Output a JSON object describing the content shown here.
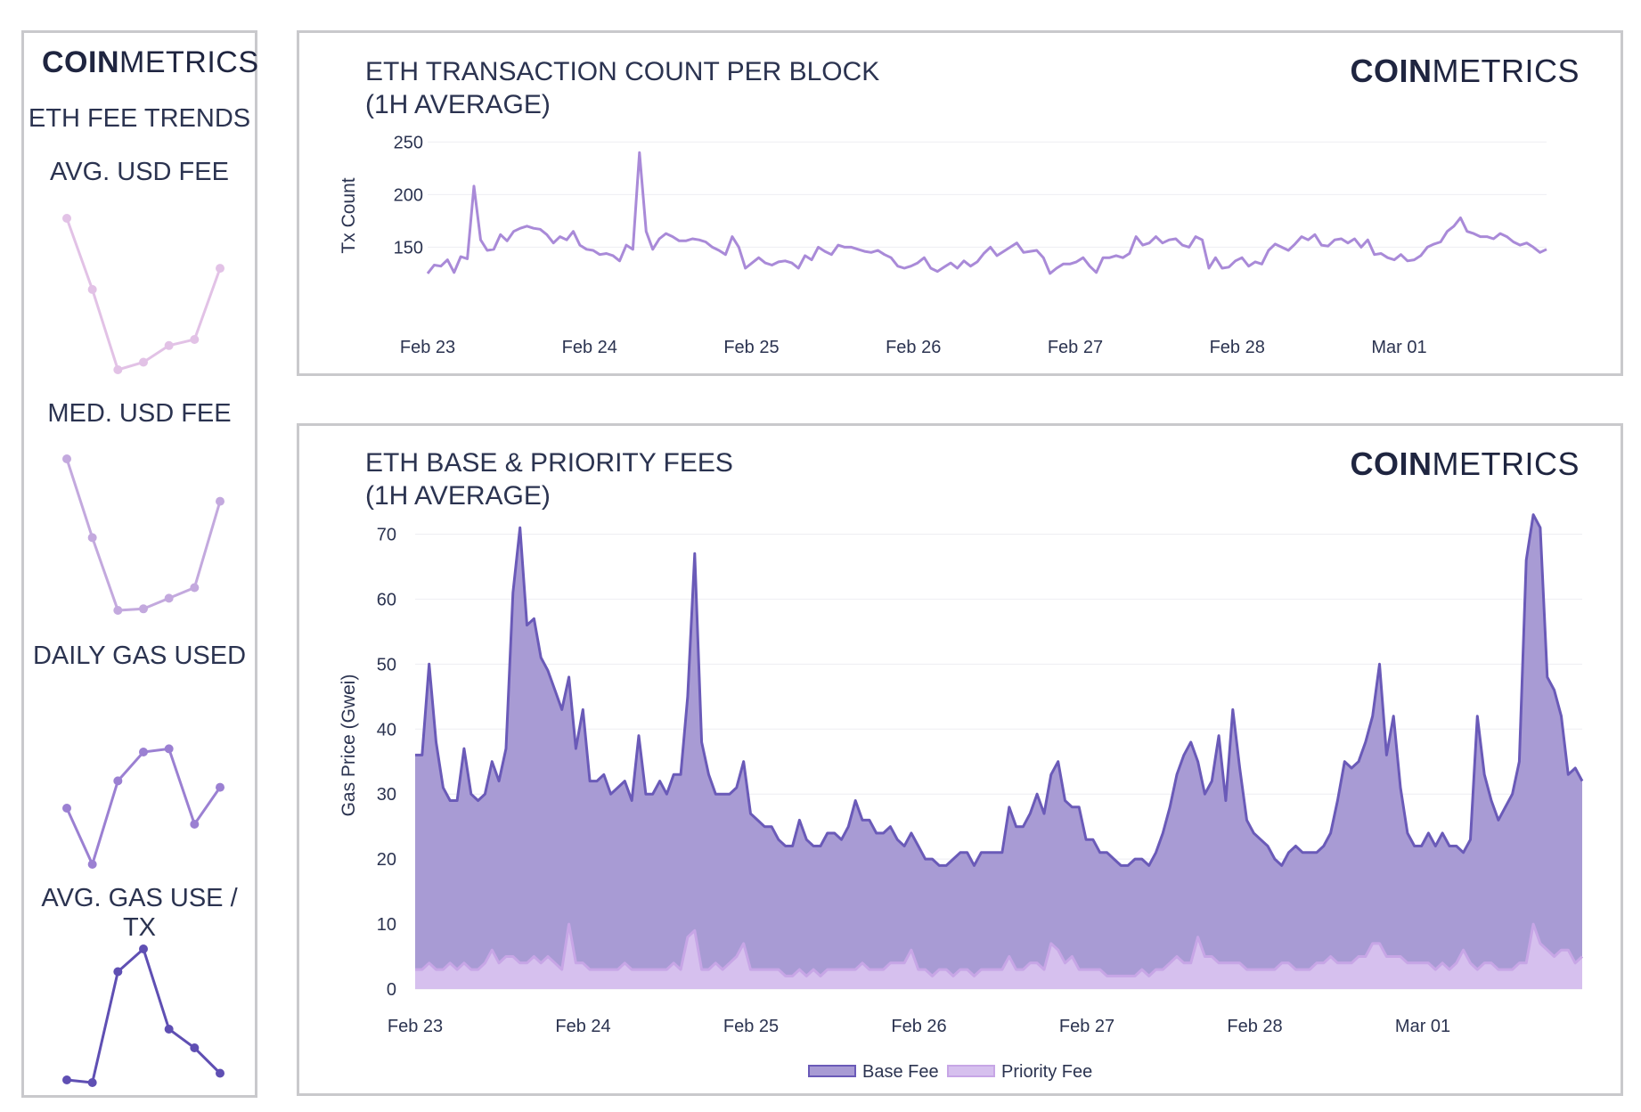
{
  "brand": {
    "bold": "COIN",
    "light": "METRICS"
  },
  "sidebar": {
    "title": "ETH FEE TRENDS",
    "sparklines": [
      {
        "label": "AVG. USD FEE",
        "color": "#e2c2e6",
        "values": [
          1.0,
          0.53,
          0.0,
          0.05,
          0.16,
          0.2,
          0.67
        ]
      },
      {
        "label": "MED. USD FEE",
        "color": "#c3a9de",
        "values": [
          1.0,
          0.48,
          0.0,
          0.01,
          0.08,
          0.15,
          0.72
        ]
      },
      {
        "label": "DAILY GAS USED",
        "color": "#9b80d2",
        "values": [
          0.35,
          0.0,
          0.52,
          0.7,
          0.72,
          0.25,
          0.48
        ]
      },
      {
        "label": "AVG. GAS USE / TX",
        "color": "#5f4fb3",
        "values": [
          0.02,
          0.0,
          0.83,
          1.0,
          0.4,
          0.26,
          0.07
        ]
      }
    ]
  },
  "chart_data": [
    {
      "type": "line",
      "title": "ETH TRANSACTION COUNT PER BLOCK\n(1H AVERAGE)",
      "ylabel": "Tx Count",
      "xlabel": "",
      "ylim": [
        108,
        252
      ],
      "yticks": [
        150,
        200,
        250
      ],
      "xticks": [
        "Feb 23",
        "Feb 24",
        "Feb 25",
        "Feb 26",
        "Feb 27",
        "Feb 28",
        "Mar 01"
      ],
      "grid": true,
      "series": [
        {
          "color": "#a98ad8",
          "values": [
            125,
            133,
            132,
            138,
            126,
            141,
            139,
            208,
            157,
            147,
            148,
            162,
            156,
            165,
            168,
            170,
            168,
            167,
            162,
            154,
            160,
            157,
            165,
            152,
            148,
            147,
            143,
            144,
            142,
            137,
            152,
            148,
            240,
            165,
            148,
            158,
            163,
            160,
            156,
            156,
            158,
            157,
            155,
            150,
            147,
            143,
            160,
            150,
            130,
            135,
            140,
            135,
            133,
            136,
            137,
            135,
            130,
            142,
            138,
            150,
            146,
            143,
            152,
            150,
            150,
            148,
            146,
            145,
            147,
            143,
            140,
            132,
            130,
            132,
            135,
            140,
            130,
            127,
            131,
            135,
            130,
            137,
            132,
            136,
            144,
            150,
            142,
            146,
            150,
            154,
            145,
            146,
            147,
            140,
            125,
            130,
            134,
            134,
            136,
            140,
            132,
            126,
            140,
            140,
            142,
            140,
            144,
            160,
            152,
            154,
            160,
            154,
            157,
            158,
            152,
            150,
            160,
            157,
            130,
            140,
            130,
            131,
            137,
            140,
            132,
            136,
            134,
            147,
            153,
            150,
            147,
            153,
            160,
            157,
            162,
            152,
            151,
            157,
            158,
            154,
            158,
            150,
            157,
            143,
            144,
            140,
            138,
            143,
            137,
            138,
            142,
            150,
            153,
            155,
            165,
            170,
            178,
            165,
            163,
            160,
            160,
            158,
            163,
            160,
            155,
            152,
            154,
            150,
            145,
            148
          ]
        }
      ]
    },
    {
      "type": "area",
      "title": "ETH BASE & PRIORITY FEES\n(1H AVERAGE)",
      "ylabel": "Gas Price (Gwei)",
      "xlabel": "",
      "ylim": [
        0,
        75
      ],
      "yticks": [
        0,
        10,
        20,
        30,
        40,
        50,
        60,
        70
      ],
      "xticks": [
        "Feb 23",
        "Feb 24",
        "Feb 25",
        "Feb 26",
        "Feb 27",
        "Feb 28",
        "Mar 01"
      ],
      "grid": true,
      "legend": "bottom",
      "series": [
        {
          "name": "Base Fee",
          "color": "#6a5ab8",
          "fill": "#a89bd4",
          "values": [
            36,
            36,
            50,
            38,
            31,
            29,
            29,
            37,
            30,
            29,
            30,
            35,
            32,
            37,
            61,
            71,
            56,
            57,
            51,
            49,
            46,
            43,
            48,
            37,
            43,
            32,
            32,
            33,
            30,
            31,
            32,
            29,
            39,
            30,
            30,
            32,
            30,
            33,
            33,
            45,
            67,
            38,
            33,
            30,
            30,
            30,
            31,
            35,
            27,
            26,
            25,
            25,
            23,
            22,
            22,
            26,
            23,
            22,
            22,
            24,
            24,
            23,
            25,
            29,
            26,
            26,
            24,
            24,
            25,
            23,
            22,
            24,
            22,
            20,
            20,
            19,
            19,
            20,
            21,
            21,
            19,
            21,
            21,
            21,
            21,
            28,
            25,
            25,
            27,
            30,
            27,
            33,
            35,
            29,
            28,
            28,
            23,
            23,
            21,
            21,
            20,
            19,
            19,
            20,
            20,
            19,
            21,
            24,
            28,
            33,
            36,
            38,
            35,
            30,
            32,
            39,
            29,
            43,
            34,
            26,
            24,
            23,
            22,
            20,
            19,
            21,
            22,
            21,
            21,
            21,
            22,
            24,
            29,
            35,
            34,
            35,
            38,
            42,
            50,
            36,
            42,
            31,
            24,
            22,
            22,
            24,
            22,
            24,
            22,
            22,
            21,
            23,
            42,
            33,
            29,
            26,
            28,
            30,
            35,
            66,
            73,
            71,
            48,
            46,
            42,
            33,
            34,
            32
          ]
        },
        {
          "name": "Priority Fee",
          "color": "#c7a6e6",
          "fill": "#d6c0ee",
          "values": [
            3,
            3,
            4,
            3,
            3,
            4,
            3,
            4,
            3,
            3,
            4,
            6,
            4,
            5,
            5,
            4,
            4,
            5,
            4,
            5,
            4,
            3,
            10,
            4,
            4,
            3,
            3,
            3,
            3,
            3,
            4,
            3,
            3,
            3,
            3,
            3,
            3,
            4,
            3,
            8,
            9,
            3,
            3,
            4,
            3,
            4,
            5,
            7,
            3,
            3,
            3,
            3,
            3,
            2,
            2,
            3,
            2,
            3,
            2,
            3,
            3,
            3,
            3,
            3,
            4,
            3,
            3,
            3,
            4,
            4,
            4,
            6,
            3,
            3,
            2,
            3,
            3,
            2,
            3,
            3,
            2,
            3,
            3,
            3,
            3,
            5,
            3,
            3,
            4,
            4,
            3,
            7,
            6,
            4,
            5,
            3,
            3,
            3,
            3,
            2,
            2,
            2,
            2,
            2,
            3,
            2,
            3,
            3,
            4,
            5,
            4,
            4,
            8,
            5,
            5,
            4,
            4,
            4,
            4,
            3,
            3,
            3,
            3,
            3,
            4,
            4,
            3,
            3,
            3,
            4,
            4,
            5,
            4,
            4,
            4,
            5,
            5,
            7,
            7,
            5,
            5,
            5,
            4,
            4,
            4,
            4,
            3,
            4,
            3,
            4,
            6,
            4,
            3,
            4,
            4,
            3,
            3,
            3,
            4,
            4,
            10,
            7,
            6,
            5,
            6,
            6,
            4,
            5
          ]
        }
      ]
    }
  ]
}
